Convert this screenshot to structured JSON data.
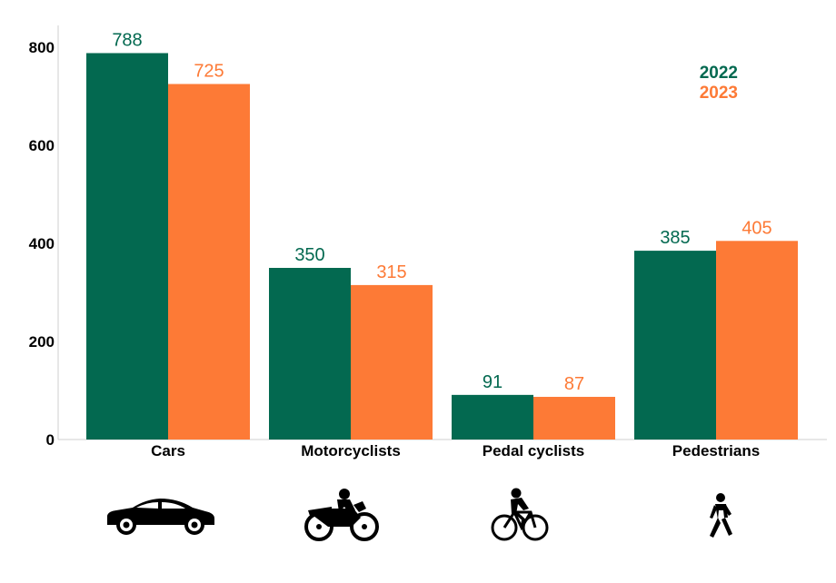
{
  "chart_data": {
    "type": "bar",
    "title": "",
    "xlabel": "",
    "ylabel": "",
    "categories": [
      "Cars",
      "Motorcyclists",
      "Pedal cyclists",
      "Pedestrians"
    ],
    "category_icons": [
      "car-icon",
      "motorcycle-icon",
      "bicycle-icon",
      "pedestrian-icon"
    ],
    "series": [
      {
        "name": "2022",
        "values": [
          788,
          350,
          91,
          385
        ],
        "color": "#036950"
      },
      {
        "name": "2023",
        "values": [
          725,
          315,
          87,
          405
        ],
        "color": "#fd7a36"
      }
    ],
    "ylim": [
      0,
      800
    ],
    "yticks": [
      0,
      200,
      400,
      600,
      800
    ],
    "legend_position": "top-right",
    "grid": false
  }
}
